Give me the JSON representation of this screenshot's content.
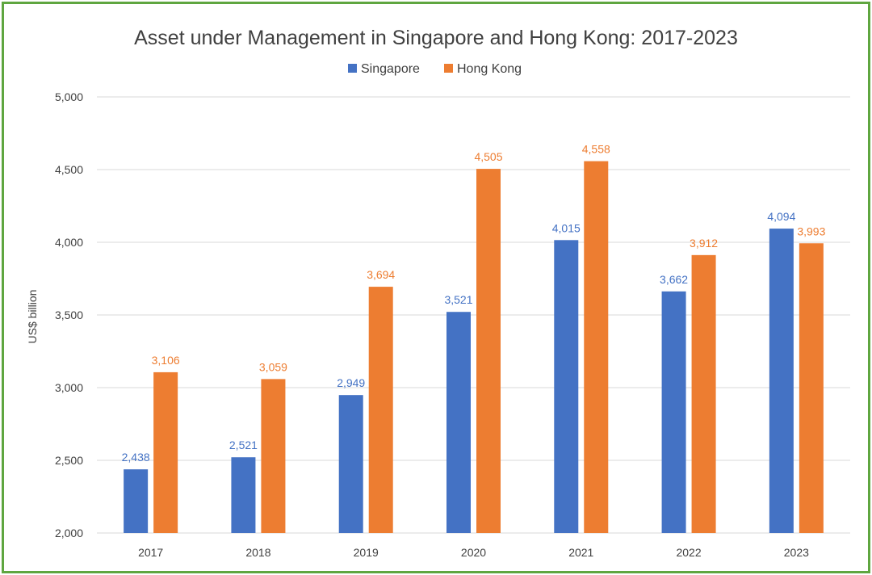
{
  "colors": {
    "frame": "#5fa640",
    "singapore": "#4472c4",
    "hong_kong": "#ed7d31",
    "grid": "#d9d9d9",
    "text": "#404040"
  },
  "chart_data": {
    "type": "bar",
    "title": "Asset under Management in Singapore and Hong Kong: 2017-2023",
    "xlabel": "",
    "ylabel": "US$ billion",
    "ylim": [
      2000,
      5000
    ],
    "y_ticks": [
      2000,
      2500,
      3000,
      3500,
      4000,
      4500,
      5000
    ],
    "y_tick_labels": [
      "2,000",
      "2,500",
      "3,000",
      "3,500",
      "4,000",
      "4,500",
      "5,000"
    ],
    "grid": true,
    "legend": "top-center",
    "categories": [
      "2017",
      "2018",
      "2019",
      "2020",
      "2021",
      "2022",
      "2023"
    ],
    "series": [
      {
        "name": "Singapore",
        "color": "#4472c4",
        "values": [
          2438,
          2521,
          2949,
          3521,
          4015,
          3662,
          4094
        ],
        "labels": [
          "2,438",
          "2,521",
          "2,949",
          "3,521",
          "4,015",
          "3,662",
          "4,094"
        ]
      },
      {
        "name": "Hong Kong",
        "color": "#ed7d31",
        "values": [
          3106,
          3059,
          3694,
          4505,
          4558,
          3912,
          3993
        ],
        "labels": [
          "3,106",
          "3,059",
          "3,694",
          "4,505",
          "4,558",
          "3,912",
          "3,993"
        ]
      }
    ]
  }
}
